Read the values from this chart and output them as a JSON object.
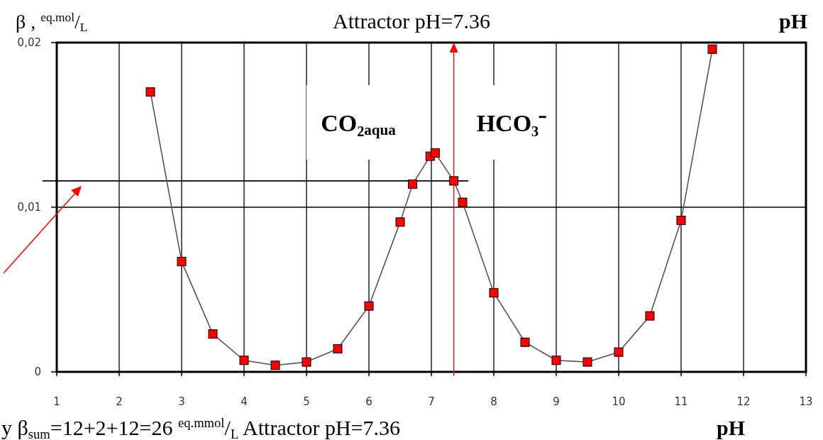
{
  "chart_data": {
    "type": "line",
    "title": "Attractor pH=7.36",
    "xlabel": "pH",
    "ylabel": "β , $^{eq.mol}$/$_{L}$",
    "annotations": [
      "CO₂$_{aqua}$",
      "HCO₃⁻",
      "y β$_{sum}$=12+2+12=26 $^{eq.mmol}$/$_{L}$ Attractor pH=7.36",
      "pH"
    ],
    "series": [
      {
        "color": "#555555",
        "x": [
          2.5,
          3,
          3.5,
          4,
          4.5,
          5,
          5.5,
          6,
          6.5,
          6.7,
          6.98,
          7.06,
          7.36,
          7.5,
          8,
          8.5,
          9,
          9.5,
          10,
          10.5,
          11,
          11.5
        ],
        "values": [
          0.017,
          0.0067,
          0.0023,
          0.0007,
          0.0004,
          0.0006,
          0.0014,
          0.004,
          0.0091,
          0.0114,
          0.0131,
          0.0133,
          0.0116,
          0.0103,
          0.0048,
          0.0018,
          0.0007,
          0.0006,
          0.0012,
          0.0034,
          0.0092,
          0.0196
        ]
      }
    ],
    "marker": "square",
    "line_style": "solid",
    "grid": true,
    "xlim": [
      1,
      13
    ],
    "xticks": [
      1,
      2,
      3,
      4,
      5,
      6,
      7,
      8,
      9,
      10,
      11,
      12,
      13
    ],
    "ylim": [
      0,
      0.02
    ],
    "yticks": [
      {
        "value": 0,
        "label": "0"
      },
      {
        "value": 0.01,
        "label": "0,01"
      },
      {
        "value": 0.02,
        "label": "0,02"
      }
    ],
    "ref_lines": [
      {
        "axis": "y",
        "value": 0.0116,
        "color": "#000000"
      },
      {
        "axis": "x",
        "value": 7.36,
        "color": "#ff0000"
      }
    ]
  }
}
